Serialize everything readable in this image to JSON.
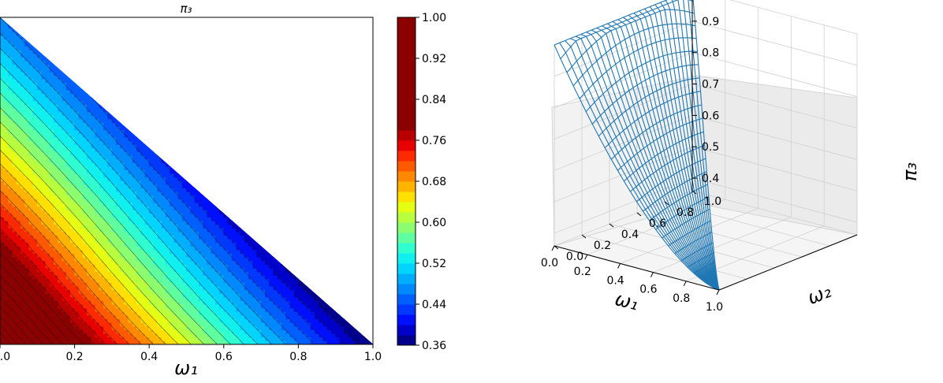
{
  "contour": {
    "title": "π₃",
    "xlabel": "ω₁",
    "xticks": [
      "0.0",
      "0.2",
      "0.4",
      "0.6",
      "0.8",
      "1.0"
    ],
    "colorbar_ticks": [
      "1.00",
      "0.92",
      "0.84",
      "0.76",
      "0.68",
      "0.60",
      "0.52",
      "0.44",
      "0.36"
    ]
  },
  "surface": {
    "xlabel": "ω₁",
    "ylabel": "ω₂",
    "zlabel": "π₃",
    "xticks": [
      "0.0",
      "0.2",
      "0.4",
      "0.6",
      "0.8",
      "1.0"
    ],
    "yticks": [
      "0.0",
      "0.2",
      "0.4",
      "0.6",
      "0.8",
      "1.0"
    ],
    "zticks": [
      "1.0",
      "0.9",
      "0.8",
      "0.7",
      "0.6",
      "0.5",
      "0.4"
    ]
  },
  "chart_data": [
    {
      "type": "contour",
      "title": "π₃",
      "xlabel": "ω₁",
      "ylabel": "",
      "xlim": [
        0.0,
        1.0
      ],
      "ylim": [
        0.0,
        1.0
      ],
      "domain": "ω₁ + ω₂ ≤ 1 (upper-right triangle blank)",
      "colormap": "jet",
      "levels": [
        0.36,
        0.38,
        0.4,
        0.42,
        0.44,
        0.46,
        0.48,
        0.5,
        0.52,
        0.54,
        0.56,
        0.58,
        0.6,
        0.62,
        0.64,
        0.66,
        0.68,
        0.7,
        0.72,
        0.74,
        0.76,
        0.78,
        0.8,
        0.82,
        0.84,
        0.86,
        0.88,
        0.9,
        0.92,
        0.94,
        0.96,
        0.98,
        1.0
      ],
      "colorbar": {
        "ticks": [
          1.0,
          0.92,
          0.84,
          0.76,
          0.68,
          0.6,
          0.52,
          0.44,
          0.36
        ],
        "bands": [
          {
            "from": 0.36,
            "to": 0.38,
            "color": "#00008b"
          },
          {
            "from": 0.38,
            "to": 0.4,
            "color": "#0000c8"
          },
          {
            "from": 0.4,
            "to": 0.42,
            "color": "#0010ff"
          },
          {
            "from": 0.42,
            "to": 0.44,
            "color": "#0038ff"
          },
          {
            "from": 0.44,
            "to": 0.46,
            "color": "#0060ff"
          },
          {
            "from": 0.46,
            "to": 0.48,
            "color": "#0088ff"
          },
          {
            "from": 0.48,
            "to": 0.5,
            "color": "#00aeff"
          },
          {
            "from": 0.5,
            "to": 0.52,
            "color": "#00d4ff"
          },
          {
            "from": 0.52,
            "to": 0.54,
            "color": "#10f0ee"
          },
          {
            "from": 0.54,
            "to": 0.56,
            "color": "#30ffd0"
          },
          {
            "from": 0.56,
            "to": 0.58,
            "color": "#5fffa0"
          },
          {
            "from": 0.58,
            "to": 0.6,
            "color": "#8cff70"
          },
          {
            "from": 0.6,
            "to": 0.62,
            "color": "#b8ff40"
          },
          {
            "from": 0.62,
            "to": 0.64,
            "color": "#e4ff14"
          },
          {
            "from": 0.64,
            "to": 0.66,
            "color": "#ffe000"
          },
          {
            "from": 0.66,
            "to": 0.68,
            "color": "#ffb400"
          },
          {
            "from": 0.68,
            "to": 0.7,
            "color": "#ff8800"
          },
          {
            "from": 0.7,
            "to": 0.72,
            "color": "#ff5a00"
          },
          {
            "from": 0.72,
            "to": 0.74,
            "color": "#ff2a00"
          },
          {
            "from": 0.74,
            "to": 0.76,
            "color": "#e80000"
          },
          {
            "from": 0.76,
            "to": 0.78,
            "color": "#b80000"
          },
          {
            "from": 0.78,
            "to": 1.0,
            "color": "#8b0000"
          }
        ]
      },
      "series": [
        {
          "values_note": "π₃ at corner (ω₁=0, ω₂=0)",
          "x": 0.0,
          "y": 0.0,
          "z": 1.0
        },
        {
          "values_note": "π₃ at corner (ω₁=1, ω₂=0)",
          "x": 1.0,
          "y": 0.0,
          "z": 0.36
        },
        {
          "values_note": "π₃ at corner (ω₁=0, ω₂=1)",
          "x": 0.0,
          "y": 1.0,
          "z": 0.46
        }
      ]
    },
    {
      "type": "surface",
      "xlabel": "ω₁",
      "ylabel": "ω₂",
      "zlabel": "π₃",
      "xlim": [
        0.0,
        1.0
      ],
      "ylim": [
        0.0,
        1.0
      ],
      "zlim": [
        0.36,
        1.0
      ],
      "xticks": [
        0.0,
        0.2,
        0.4,
        0.6,
        0.8,
        1.0
      ],
      "yticks": [
        0.0,
        0.2,
        0.4,
        0.6,
        0.8,
        1.0
      ],
      "zticks": [
        1.0,
        0.9,
        0.8,
        0.7,
        0.6,
        0.5,
        0.4
      ],
      "color": "#1f77b4",
      "grid": true
    }
  ]
}
